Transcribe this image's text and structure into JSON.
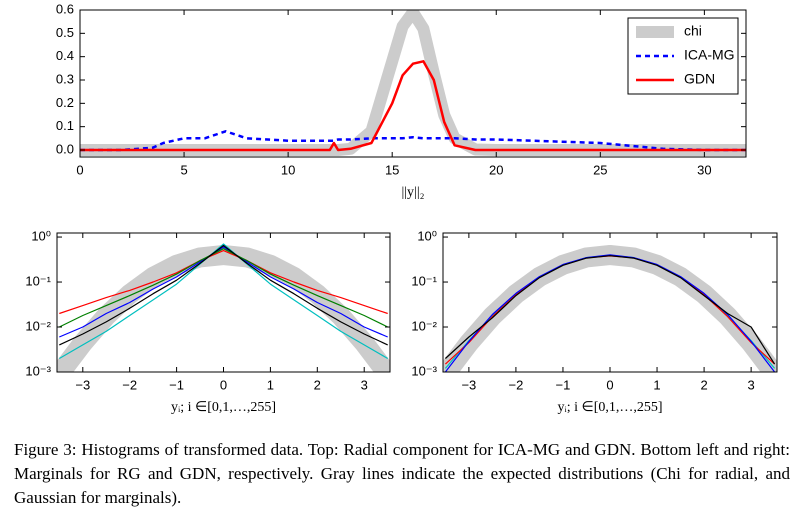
{
  "chart_data": [
    {
      "type": "line",
      "xlabel": "||y||₂",
      "x": [
        0,
        2,
        3.5,
        4,
        5,
        6,
        7,
        8,
        10,
        12,
        12.2,
        12.4,
        13,
        14,
        15,
        15.5,
        16,
        16.5,
        17,
        17.5,
        18,
        19,
        20,
        25,
        28,
        30,
        32
      ],
      "series": [
        {
          "name": "chi",
          "color": "#cccccc",
          "linewidth": 12,
          "linestyle": "solid",
          "values": [
            0,
            0,
            0,
            0,
            0,
            0,
            0,
            0,
            0,
            0,
            0,
            0,
            0.005,
            0.08,
            0.38,
            0.53,
            0.59,
            0.52,
            0.33,
            0.15,
            0.05,
            0.002,
            0,
            0,
            0,
            0,
            0
          ]
        },
        {
          "name": "ICA-MG",
          "color": "#0000ff",
          "linewidth": 2.5,
          "linestyle": "dashed",
          "values": [
            0,
            0,
            0.01,
            0.03,
            0.05,
            0.05,
            0.08,
            0.05,
            0.04,
            0.04,
            0.04,
            0.045,
            0.045,
            0.05,
            0.05,
            0.05,
            0.055,
            0.05,
            0.05,
            0.05,
            0.05,
            0.045,
            0.045,
            0.03,
            0.005,
            0,
            0
          ]
        },
        {
          "name": "GDN",
          "color": "#ff0000",
          "linewidth": 2.5,
          "linestyle": "solid",
          "values": [
            0,
            0,
            0,
            0,
            0,
            0,
            0,
            0,
            0,
            0,
            0.03,
            0,
            0.005,
            0.03,
            0.2,
            0.32,
            0.37,
            0.38,
            0.3,
            0.12,
            0.02,
            0,
            0,
            0,
            0,
            0,
            0
          ]
        }
      ],
      "xlim": [
        0,
        32
      ],
      "ylim": [
        -0.03,
        0.6
      ],
      "xticks": [
        0,
        5,
        10,
        15,
        20,
        25,
        30
      ],
      "yticks": [
        {
          "value": 0,
          "label": "0.0"
        },
        0.1,
        0.2,
        0.3,
        0.4,
        0.5,
        0.6
      ],
      "legend": "upper right"
    },
    {
      "type": "line",
      "xlabel": "yᵢ; i ∈[0,1,…,255]",
      "yscale": "log",
      "x": [
        -3.5,
        -3,
        -2.5,
        -2,
        -1.5,
        -1,
        -0.5,
        0,
        0.5,
        1,
        1.5,
        2,
        2.5,
        3,
        3.5
      ],
      "series": [
        {
          "color": "#cccccc",
          "linewidth": 20,
          "values": [
            0.0009,
            0.0044,
            0.0175,
            0.054,
            0.13,
            0.242,
            0.352,
            0.399,
            0.352,
            0.242,
            0.13,
            0.054,
            0.0175,
            0.0044,
            0.0009
          ]
        },
        {
          "color": "#00bfbf",
          "linewidth": 1.2,
          "values": [
            0.002,
            0.004,
            0.008,
            0.018,
            0.04,
            0.09,
            0.25,
            0.7,
            0.25,
            0.09,
            0.04,
            0.018,
            0.008,
            0.004,
            0.002
          ]
        },
        {
          "color": "#ff0000",
          "linewidth": 1.2,
          "values": [
            0.02,
            0.03,
            0.045,
            0.065,
            0.1,
            0.16,
            0.3,
            0.5,
            0.3,
            0.16,
            0.1,
            0.065,
            0.045,
            0.03,
            0.02
          ]
        },
        {
          "color": "#0000ff",
          "linewidth": 1.2,
          "values": [
            0.006,
            0.01,
            0.02,
            0.035,
            0.07,
            0.13,
            0.28,
            0.6,
            0.28,
            0.13,
            0.07,
            0.035,
            0.02,
            0.01,
            0.006
          ]
        },
        {
          "color": "#008000",
          "linewidth": 1.2,
          "values": [
            0.01,
            0.018,
            0.03,
            0.05,
            0.085,
            0.15,
            0.3,
            0.55,
            0.3,
            0.15,
            0.085,
            0.05,
            0.03,
            0.018,
            0.01
          ]
        },
        {
          "color": "#000000",
          "linewidth": 1.2,
          "values": [
            0.004,
            0.007,
            0.013,
            0.026,
            0.055,
            0.11,
            0.26,
            0.65,
            0.26,
            0.11,
            0.055,
            0.026,
            0.013,
            0.007,
            0.004
          ]
        }
      ],
      "xlim": [
        -3.55,
        3.55
      ],
      "ylim": [
        0.001,
        1.23
      ],
      "xticks": [
        {
          "value": -3,
          "label": "−3"
        },
        {
          "value": -2,
          "label": "−2"
        },
        {
          "value": -1,
          "label": "−1"
        },
        0,
        1,
        2,
        3
      ],
      "yticks": [
        {
          "value": 1,
          "label": "10⁰"
        },
        {
          "value": 0.1,
          "label": "10⁻¹"
        },
        {
          "value": 0.01,
          "label": "10⁻²"
        },
        {
          "value": 0.001,
          "label": "10⁻³"
        }
      ]
    },
    {
      "type": "line",
      "xlabel": "yᵢ; i ∈[0,1,…,255]",
      "yscale": "log",
      "x": [
        -3.5,
        -3,
        -2.5,
        -2,
        -1.5,
        -1,
        -0.5,
        0,
        0.5,
        1,
        1.5,
        2,
        2.5,
        3,
        3.5
      ],
      "series": [
        {
          "color": "#cccccc",
          "linewidth": 20,
          "values": [
            0.0009,
            0.0044,
            0.0175,
            0.054,
            0.13,
            0.242,
            0.352,
            0.399,
            0.352,
            0.242,
            0.13,
            0.054,
            0.0175,
            0.0044,
            0.0009
          ]
        },
        {
          "color": "#00bfbf",
          "linewidth": 1.2,
          "values": [
            0.0012,
            0.005,
            0.018,
            0.055,
            0.13,
            0.24,
            0.35,
            0.39,
            0.35,
            0.24,
            0.13,
            0.055,
            0.018,
            0.005,
            0.0012
          ]
        },
        {
          "color": "#ff0000",
          "linewidth": 1.2,
          "values": [
            0.0015,
            0.0045,
            0.017,
            0.052,
            0.128,
            0.24,
            0.345,
            0.38,
            0.345,
            0.24,
            0.128,
            0.052,
            0.017,
            0.0045,
            0.0015
          ]
        },
        {
          "color": "#0000ff",
          "linewidth": 1.2,
          "values": [
            0.001,
            0.0048,
            0.019,
            0.056,
            0.132,
            0.245,
            0.35,
            0.4,
            0.35,
            0.245,
            0.132,
            0.056,
            0.019,
            0.0048,
            0.001
          ]
        },
        {
          "color": "#000000",
          "linewidth": 1.2,
          "values": [
            0.002,
            0.006,
            0.016,
            0.05,
            0.125,
            0.235,
            0.34,
            0.385,
            0.34,
            0.235,
            0.125,
            0.05,
            0.02,
            0.01,
            0.0015
          ]
        }
      ],
      "xlim": [
        -3.55,
        3.55
      ],
      "ylim": [
        0.001,
        1.23
      ],
      "xticks": [
        {
          "value": -3,
          "label": "−3"
        },
        {
          "value": -2,
          "label": "−2"
        },
        {
          "value": -1,
          "label": "−1"
        },
        0,
        1,
        2,
        3
      ],
      "yticks": [
        {
          "value": 1,
          "label": "10⁰"
        },
        {
          "value": 0.1,
          "label": "10⁻¹"
        },
        {
          "value": 0.01,
          "label": "10⁻²"
        },
        {
          "value": 0.001,
          "label": "10⁻³"
        }
      ]
    }
  ],
  "caption": "Figure 3: Histograms of transformed data. Top: Radial component for ICA-MG and GDN. Bottom left and right: Marginals for RG and GDN, respectively. Gray lines indicate the expected distributions (Chi for radial, and Gaussian for marginals)."
}
